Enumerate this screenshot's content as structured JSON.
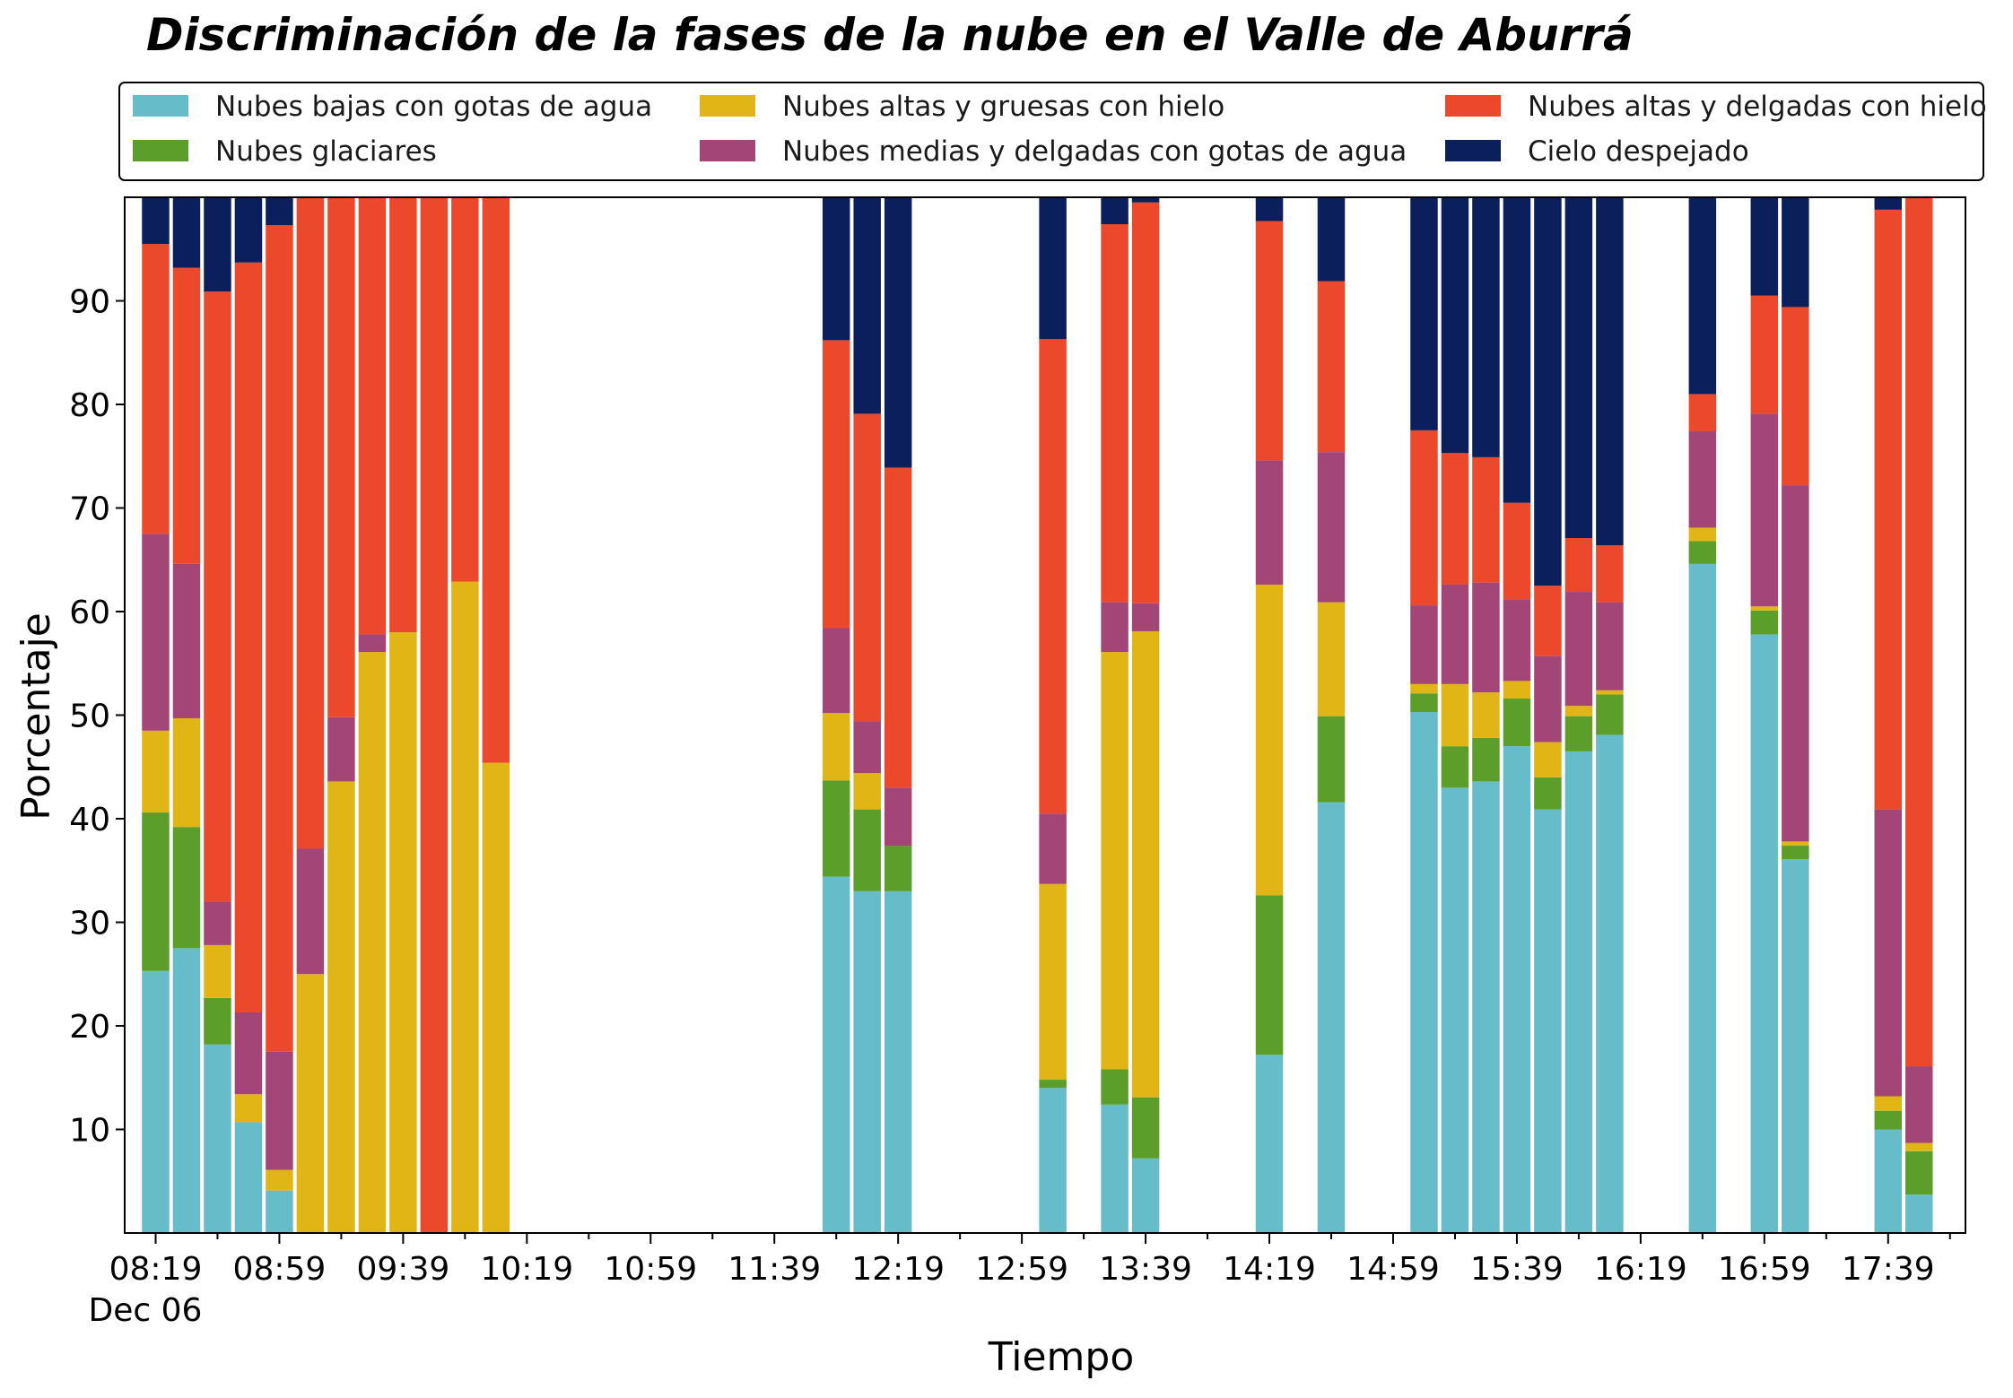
{
  "chart_data": {
    "type": "bar",
    "stacked": true,
    "title": "Discriminación de la fases de la nube en el Valle de Aburrá",
    "xlabel": "Tiempo",
    "ylabel": "Porcentaje",
    "ylim": [
      0,
      100
    ],
    "yticks": [
      10,
      20,
      30,
      40,
      50,
      60,
      70,
      80,
      90
    ],
    "xlim": [
      "08:09",
      "18:04"
    ],
    "x_tick_labels": [
      "08:19",
      "08:59",
      "09:39",
      "10:19",
      "10:59",
      "11:39",
      "12:19",
      "12:59",
      "13:39",
      "14:19",
      "14:59",
      "15:39",
      "16:19",
      "16:59",
      "17:39"
    ],
    "x_date_label": "Dec 06",
    "grid": false,
    "legend_position": "top",
    "x": [
      "08:19",
      "08:29",
      "08:39",
      "08:49",
      "08:59",
      "09:09",
      "09:19",
      "09:29",
      "09:39",
      "09:49",
      "09:59",
      "10:09",
      "11:59",
      "12:09",
      "12:19",
      "13:09",
      "13:29",
      "13:39",
      "14:19",
      "14:39",
      "15:09",
      "15:19",
      "15:29",
      "15:39",
      "15:49",
      "15:59",
      "16:09",
      "16:39",
      "16:59",
      "17:09",
      "17:39",
      "17:49"
    ],
    "series": [
      {
        "name": "Nubes bajas con gotas de agua",
        "color": "#66bcc8",
        "values": [
          25.3,
          27.5,
          18.2,
          10.7,
          4.1,
          0,
          0,
          0,
          0,
          0,
          0,
          0,
          34.4,
          33.0,
          33.0,
          14.0,
          12.4,
          7.2,
          17.2,
          41.6,
          50.3,
          43.0,
          43.6,
          47.0,
          40.9,
          46.5,
          48.1,
          64.6,
          57.8,
          36.1,
          10.0,
          3.7
        ]
      },
      {
        "name": "Nubes glaciares",
        "color": "#5c9e2a",
        "values": [
          15.3,
          11.7,
          4.5,
          0,
          0,
          0,
          0,
          0,
          0,
          0,
          0,
          0,
          9.3,
          7.9,
          4.4,
          0.8,
          3.4,
          5.9,
          15.4,
          8.3,
          1.8,
          4.0,
          4.2,
          4.6,
          3.1,
          3.4,
          3.9,
          2.2,
          2.3,
          1.3,
          1.8,
          4.2
        ]
      },
      {
        "name": "Nubes altas y gruesas con hielo",
        "color": "#e1b516",
        "values": [
          7.9,
          10.5,
          5.1,
          2.7,
          2.0,
          25.0,
          43.6,
          56.1,
          58.0,
          0,
          62.9,
          45.4,
          6.5,
          3.5,
          0,
          18.9,
          40.3,
          45.0,
          30.0,
          11.0,
          0.9,
          6.0,
          4.4,
          1.7,
          3.4,
          1.0,
          0.4,
          1.3,
          0.4,
          0.4,
          1.4,
          0.8
        ]
      },
      {
        "name": "Nubes medias y delgadas con gotas de agua",
        "color": "#a34577",
        "values": [
          19.0,
          14.9,
          4.2,
          7.9,
          11.4,
          12.1,
          6.2,
          1.7,
          0,
          0,
          0,
          0,
          8.2,
          5.0,
          5.6,
          6.8,
          4.8,
          2.7,
          12.0,
          14.5,
          7.6,
          9.6,
          10.6,
          7.9,
          8.3,
          11.0,
          8.5,
          9.3,
          18.6,
          34.4,
          27.7,
          7.4
        ]
      },
      {
        "name": "Nubes altas y delgadas con hielo",
        "color": "#ec482b",
        "values": [
          28.0,
          28.6,
          58.9,
          72.4,
          79.8,
          62.9,
          50.2,
          42.2,
          42.0,
          100,
          37.1,
          54.6,
          27.8,
          29.7,
          30.9,
          45.8,
          36.5,
          38.7,
          23.1,
          16.5,
          16.9,
          12.7,
          12.1,
          9.3,
          6.8,
          5.2,
          5.5,
          3.6,
          11.4,
          17.2,
          57.9,
          84.0
        ]
      },
      {
        "name": "Cielo despejado",
        "color": "#0a1f5c",
        "values": [
          4.5,
          6.8,
          9.1,
          6.3,
          2.7,
          0,
          0,
          0,
          0,
          0,
          0,
          0,
          13.8,
          20.9,
          26.1,
          13.7,
          2.6,
          0.5,
          2.3,
          8.1,
          22.5,
          24.7,
          25.1,
          29.5,
          37.5,
          32.9,
          33.6,
          19.0,
          9.5,
          10.6,
          1.2,
          0
        ]
      }
    ]
  }
}
